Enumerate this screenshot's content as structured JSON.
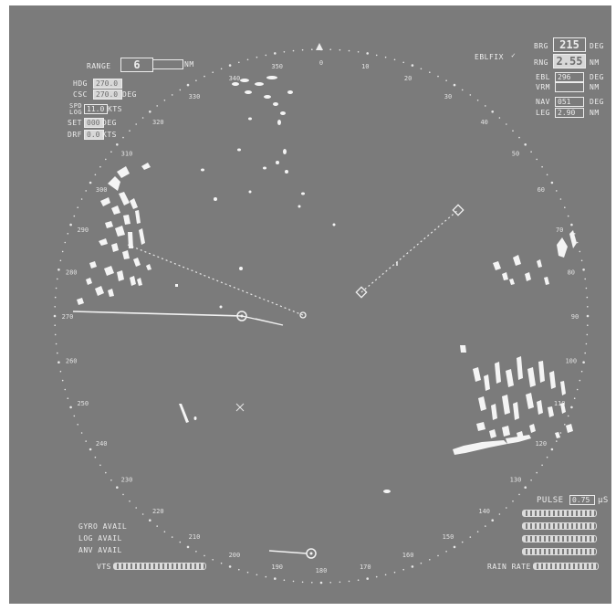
{
  "range": {
    "label": "RANGE",
    "value": "6",
    "unit": "NM"
  },
  "heading": {
    "hdg_label": "HDG",
    "hdg_value": "270.0",
    "csc_label": "CSC",
    "csc_value": "270.0",
    "unit": "DEG"
  },
  "speed": {
    "spd_label": "SPD",
    "log_label": "LOG",
    "value": "11.0",
    "unit": "KTS"
  },
  "set_drift": {
    "set_label": "SET",
    "set_value": "000",
    "set_unit": "DEG",
    "drf_label": "DRF",
    "drf_value": "0.0",
    "drf_unit": "KTS"
  },
  "ebl_fix": {
    "label": "EBLFIX"
  },
  "cursor_readout": {
    "brg_label": "BRG",
    "brg_value": "215",
    "brg_unit": "DEG",
    "rng_label": "RNG",
    "rng_value": "2.55",
    "rng_unit": "NM"
  },
  "ebl_vrm": {
    "ebl_label": "EBL",
    "ebl_value": "296",
    "ebl_unit": "DEG",
    "vrm_label": "VRM",
    "vrm_value": "",
    "vrm_unit": "NM"
  },
  "nav_leg": {
    "nav_label": "NAV",
    "nav_value": "051",
    "nav_unit": "DEG",
    "leg_label": "LEG",
    "leg_value": "2.90",
    "leg_unit": "NM"
  },
  "pulse": {
    "label": "PULSE",
    "value": "0.75",
    "unit": "μS"
  },
  "rain_rate": {
    "label": "RAIN RATE"
  },
  "status": {
    "line1": "GYRO AVAIL",
    "line2": "LOG AVAIL",
    "line3": "ANV AVAIL",
    "vts_label": "VTS"
  },
  "bearing_labels": [
    "0",
    "10",
    "20",
    "30",
    "40",
    "50",
    "60",
    "70",
    "80",
    "90",
    "100",
    "110",
    "120",
    "130",
    "140",
    "150",
    "160",
    "170",
    "180",
    "190",
    "200",
    "210",
    "220",
    "230",
    "240",
    "250",
    "260",
    "270",
    "280",
    "290",
    "300",
    "310",
    "320",
    "330",
    "340",
    "350"
  ],
  "colors": {
    "background": "#7b7b7b",
    "foreground": "#ececec",
    "echo": "#f4f4f4"
  }
}
